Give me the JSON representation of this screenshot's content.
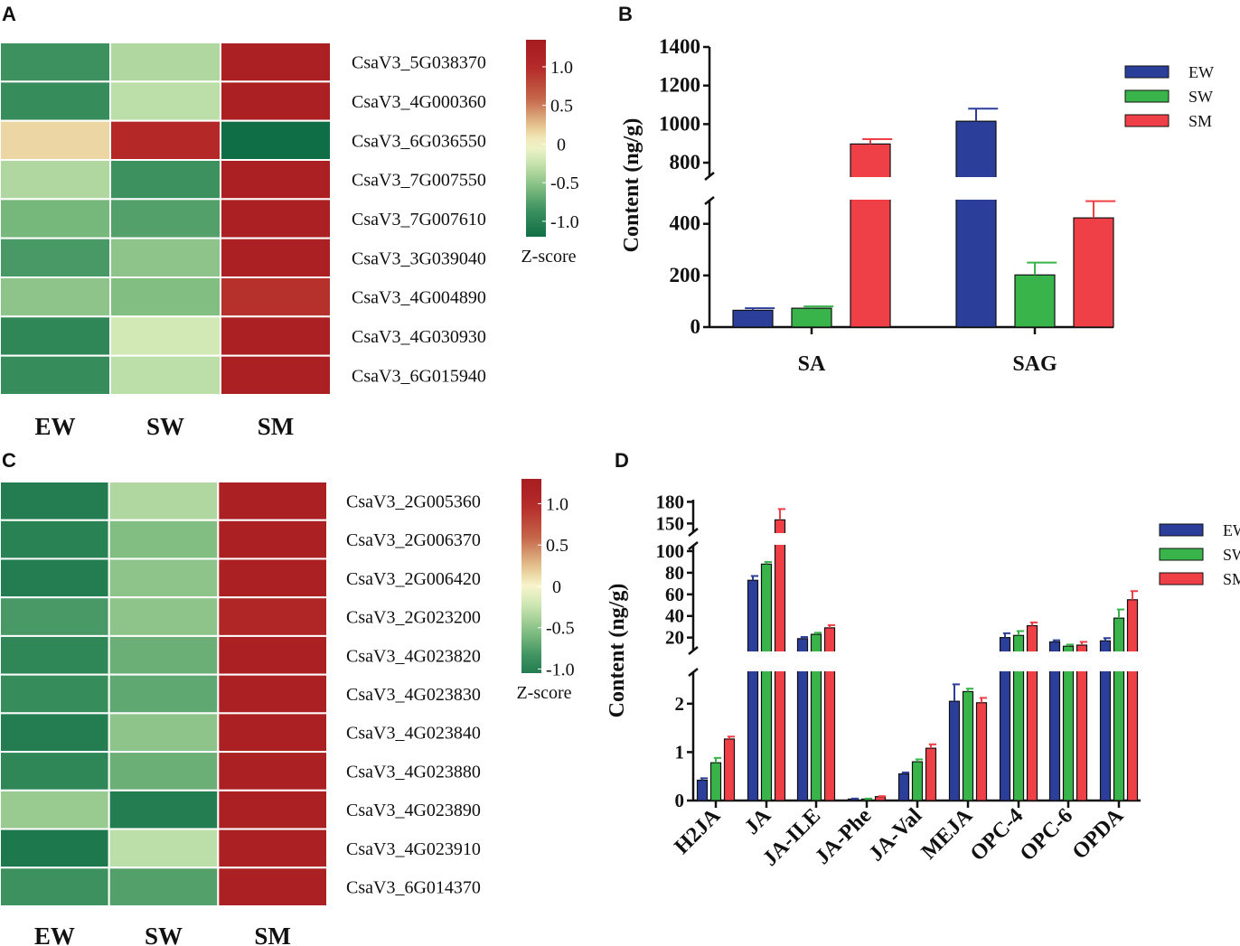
{
  "panels": {
    "a": "A",
    "b": "B",
    "c": "C",
    "d": "D"
  },
  "chart_data": [
    {
      "panel": "A",
      "type": "heatmap",
      "columns": [
        "EW",
        "SW",
        "SM"
      ],
      "rows": [
        "CsaV3_5G038370",
        "CsaV3_4G000360",
        "CsaV3_6G036550",
        "CsaV3_7G007550",
        "CsaV3_7G007610",
        "CsaV3_3G039040",
        "CsaV3_4G004890",
        "CsaV3_4G030930",
        "CsaV3_6G015940"
      ],
      "values": [
        [
          -0.85,
          -0.35,
          1.2
        ],
        [
          -0.9,
          -0.3,
          1.2
        ],
        [
          0.15,
          1.0,
          -1.2
        ],
        [
          -0.35,
          -0.85,
          1.2
        ],
        [
          -0.6,
          -0.75,
          1.2
        ],
        [
          -0.8,
          -0.5,
          1.2
        ],
        [
          -0.5,
          -0.55,
          0.95
        ],
        [
          -0.95,
          -0.2,
          1.2
        ],
        [
          -0.9,
          -0.3,
          1.2
        ]
      ],
      "colorbar": {
        "ticks": [
          "1.0",
          "0.5",
          "0",
          "-0.5",
          "-1.0"
        ],
        "tick_values": [
          1.0,
          0.5,
          0,
          -0.5,
          -1.0
        ],
        "range": [
          -1.2,
          1.35
        ],
        "label": "Z-score"
      }
    },
    {
      "panel": "B",
      "type": "bar",
      "ylabel": "Content (ng/g)",
      "categories": [
        "SA",
        "SAG"
      ],
      "series": [
        {
          "name": "EW",
          "color": "#2b3e9a",
          "values": [
            65,
            1015
          ],
          "errors": [
            8,
            65
          ]
        },
        {
          "name": "SW",
          "color": "#38b44a",
          "values": [
            73,
            202
          ],
          "errors": [
            7,
            48
          ]
        },
        {
          "name": "SM",
          "color": "#ef3f47",
          "values": [
            897,
            423
          ],
          "errors": [
            25,
            65
          ]
        }
      ],
      "y_segments": [
        {
          "range": [
            0,
            490
          ],
          "ticks": [
            0,
            200,
            400
          ]
        },
        {
          "range": [
            730,
            1400
          ],
          "ticks": [
            800,
            1000,
            1200,
            1400
          ]
        }
      ],
      "ytick_labels": [
        "0",
        "200",
        "400",
        "800",
        "1000",
        "1200",
        "1400"
      ],
      "legend": [
        "EW",
        "SW",
        "SM"
      ]
    },
    {
      "panel": "C",
      "type": "heatmap",
      "columns": [
        "EW",
        "SW",
        "SM"
      ],
      "rows": [
        "CsaV3_2G005360",
        "CsaV3_2G006370",
        "CsaV3_2G006420",
        "CsaV3_2G023200",
        "CsaV3_4G023820",
        "CsaV3_4G023830",
        "CsaV3_4G023840",
        "CsaV3_4G023880",
        "CsaV3_4G023890",
        "CsaV3_4G023910",
        "CsaV3_6G014370"
      ],
      "values": [
        [
          -1.05,
          -0.35,
          1.2
        ],
        [
          -1.0,
          -0.55,
          1.2
        ],
        [
          -1.05,
          -0.5,
          1.2
        ],
        [
          -0.8,
          -0.5,
          1.1
        ],
        [
          -0.95,
          -0.65,
          1.2
        ],
        [
          -0.9,
          -0.7,
          1.2
        ],
        [
          -1.05,
          -0.5,
          1.2
        ],
        [
          -0.95,
          -0.65,
          1.2
        ],
        [
          -0.45,
          -1.05,
          1.2
        ],
        [
          -1.1,
          -0.3,
          1.2
        ],
        [
          -0.85,
          -0.75,
          1.2
        ]
      ],
      "colorbar": {
        "ticks": [
          "1.0",
          "0.5",
          "0",
          "-0.5",
          "-1.0"
        ],
        "tick_values": [
          1.0,
          0.5,
          0,
          -0.5,
          -1.0
        ],
        "range": [
          -1.05,
          1.3
        ],
        "label": "Z-score"
      }
    },
    {
      "panel": "D",
      "type": "bar",
      "ylabel": "Content (ng/g)",
      "categories": [
        "H2JA",
        "JA",
        "JA-ILE",
        "JA-Phe",
        "JA-Val",
        "MEJA",
        "OPC-4",
        "OPC-6",
        "OPDA"
      ],
      "series": [
        {
          "name": "EW",
          "color": "#2b3e9a",
          "values": [
            0.42,
            73,
            19,
            0.03,
            0.55,
            2.05,
            20,
            16,
            17
          ],
          "errors": [
            0.04,
            4,
            1.5,
            0.01,
            0.03,
            0.35,
            4,
            1.5,
            2.5
          ]
        },
        {
          "name": "SW",
          "color": "#38b44a",
          "values": [
            0.78,
            88,
            23,
            0.03,
            0.8,
            2.25,
            22,
            12,
            38
          ],
          "errors": [
            0.1,
            2,
            1.5,
            0.01,
            0.05,
            0.06,
            4,
            1.5,
            8
          ]
        },
        {
          "name": "SM",
          "color": "#ef3f47",
          "values": [
            1.27,
            155,
            29,
            0.08,
            1.08,
            2.02,
            31,
            13,
            55
          ],
          "errors": [
            0.05,
            15,
            2.5,
            0.01,
            0.08,
            0.1,
            3,
            3,
            8
          ]
        }
      ],
      "y_segments": [
        {
          "range": [
            0,
            2.65
          ],
          "ticks": [
            0,
            1,
            2
          ]
        },
        {
          "range": [
            8,
            105
          ],
          "ticks": [
            20,
            40,
            60,
            80,
            100
          ]
        },
        {
          "range": [
            138,
            183
          ],
          "ticks": [
            150,
            180
          ]
        }
      ],
      "ytick_labels": [
        "0",
        "1",
        "2",
        "20",
        "40",
        "60",
        "80",
        "100",
        "150",
        "180"
      ],
      "legend": [
        "EW",
        "SW",
        "SM"
      ]
    }
  ]
}
